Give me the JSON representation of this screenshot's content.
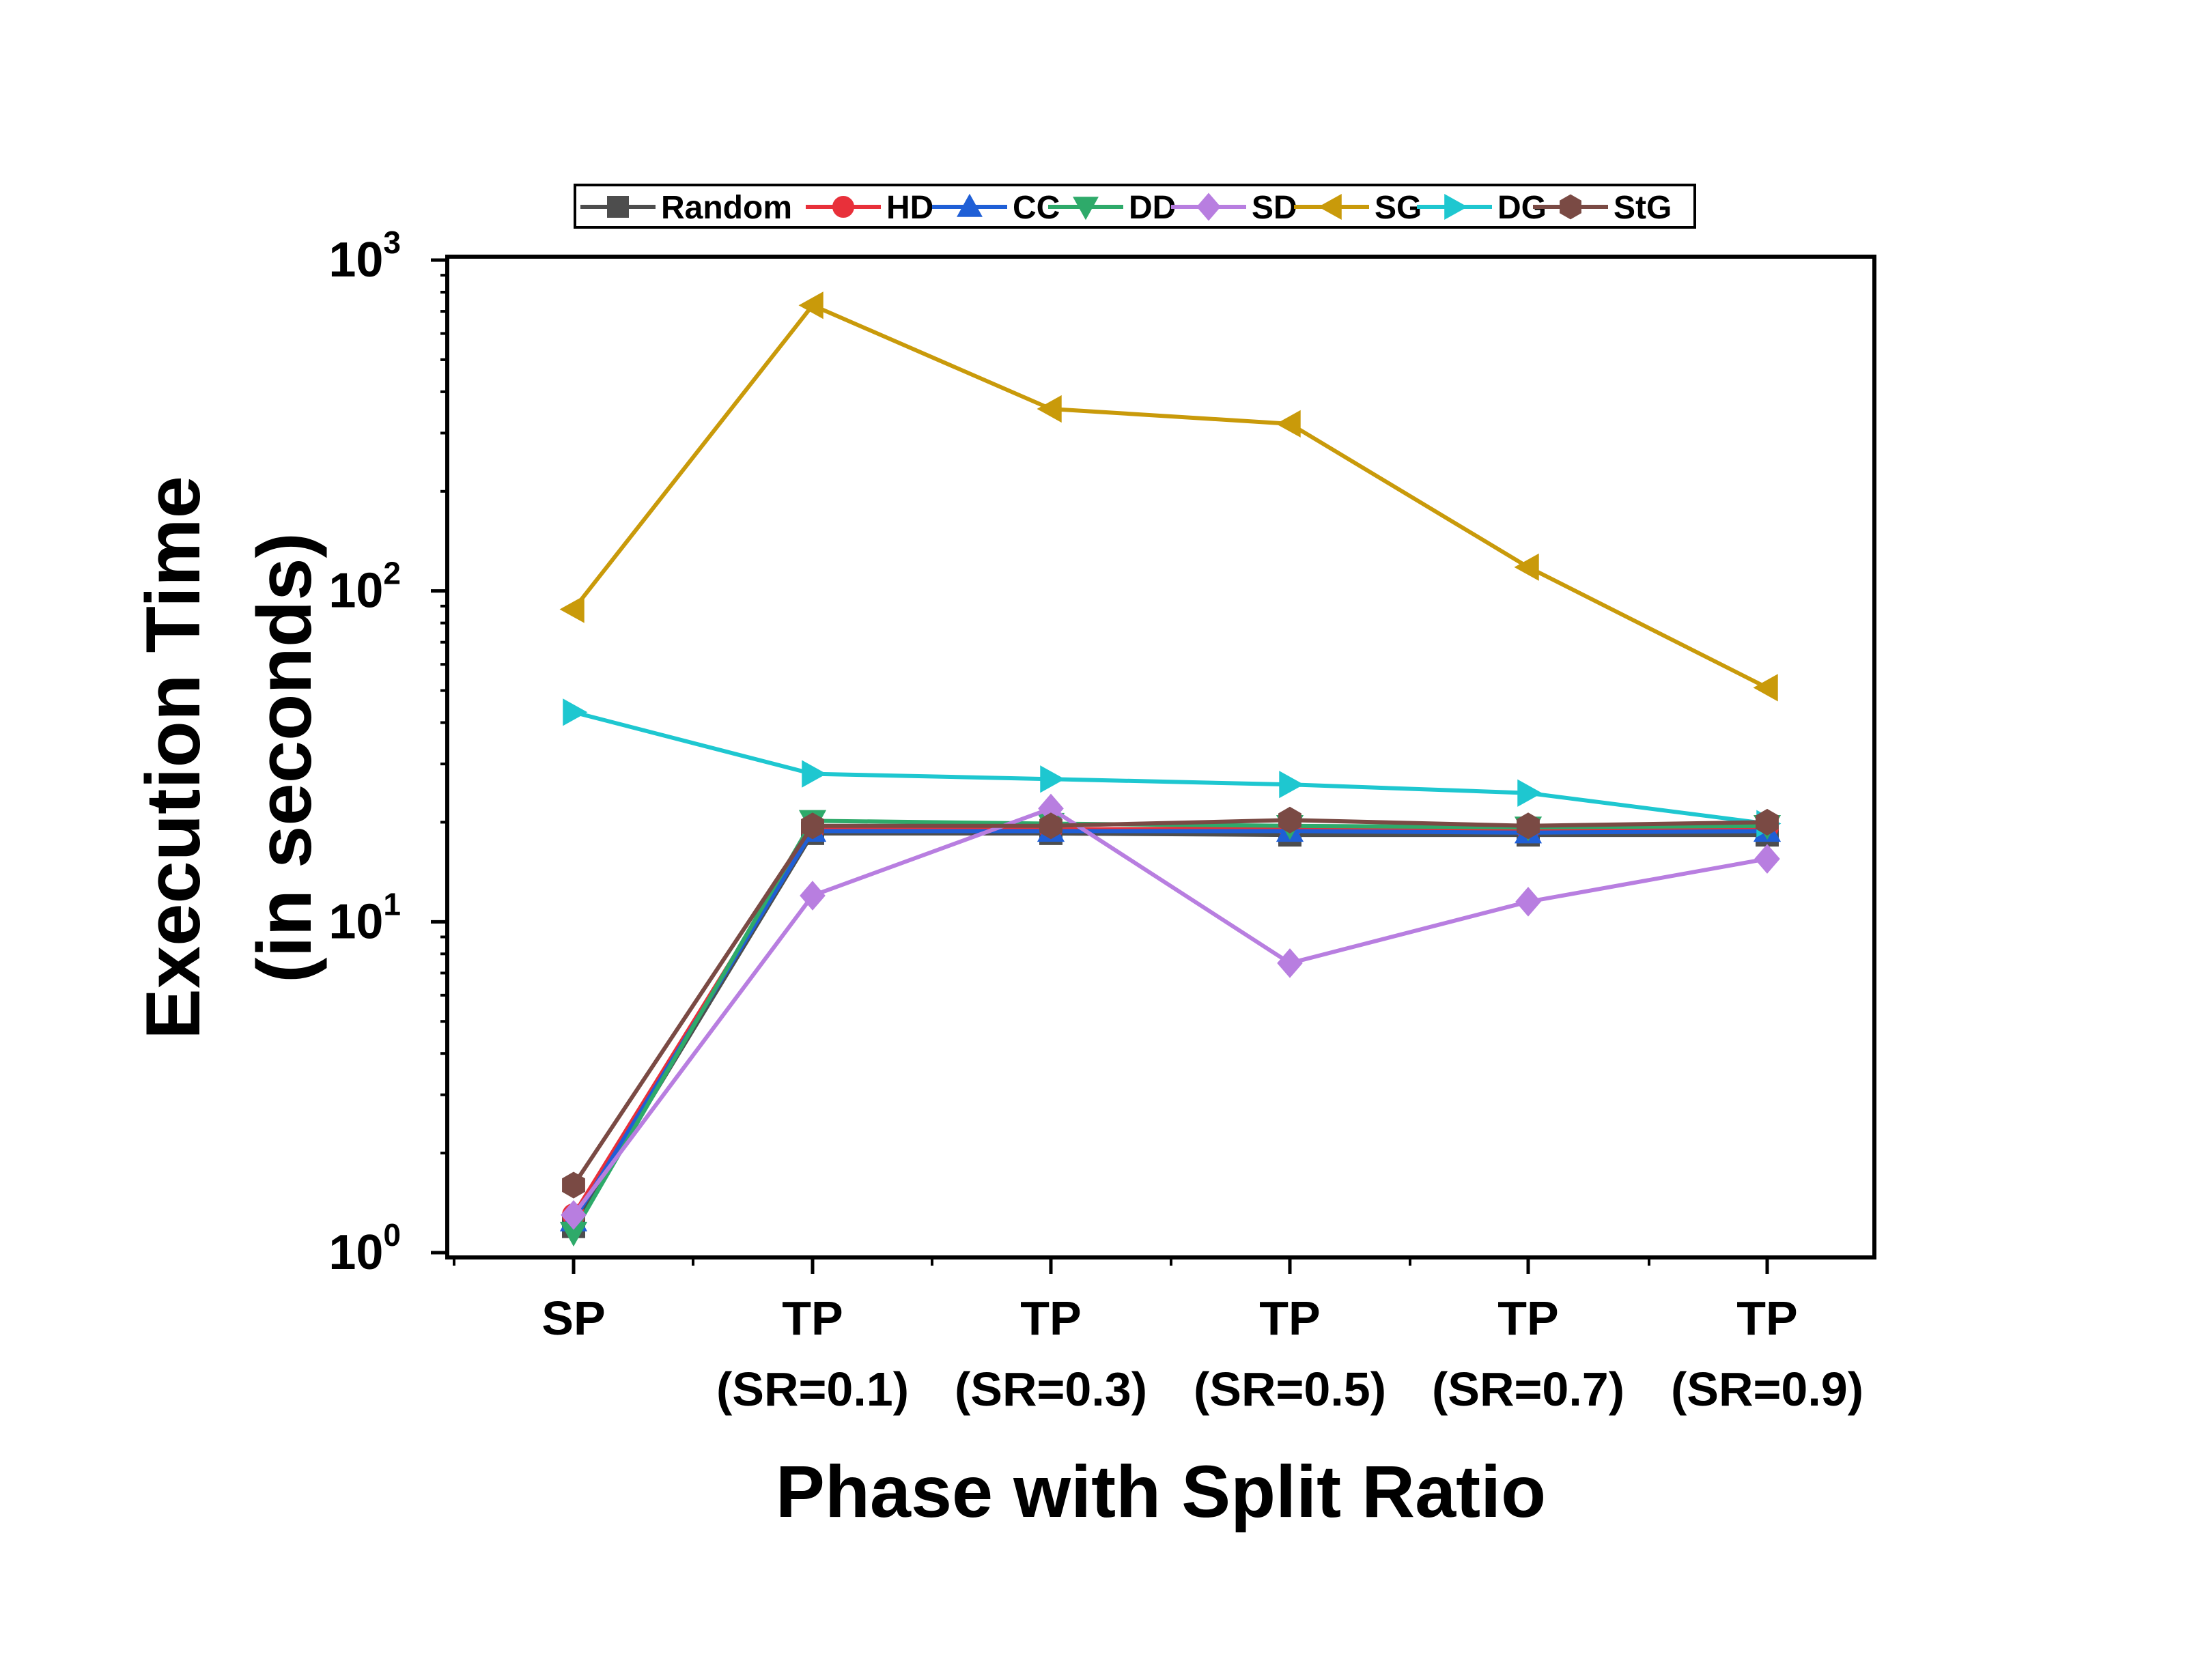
{
  "chart_data": {
    "type": "line",
    "title": "",
    "xlabel": "Phase with Split Ratio",
    "ylabel": [
      "Execution Time",
      "(in seconds)"
    ],
    "yscale": "log",
    "ylim": [
      1,
      1000
    ],
    "y_ticks": [
      {
        "base": "10",
        "exp": "0",
        "value": 1
      },
      {
        "base": "10",
        "exp": "1",
        "value": 10
      },
      {
        "base": "10",
        "exp": "2",
        "value": 100
      },
      {
        "base": "10",
        "exp": "3",
        "value": 1000
      }
    ],
    "categories": [
      [
        "SP"
      ],
      [
        "TP",
        "(SR=0.1)"
      ],
      [
        "TP",
        "(SR=0.3)"
      ],
      [
        "TP",
        "(SR=0.5)"
      ],
      [
        "TP",
        "(SR=0.7)"
      ],
      [
        "TP",
        "(SR=0.9)"
      ]
    ],
    "legend_position": "top",
    "series": [
      {
        "name": "Random",
        "color": "#4d4d4d",
        "marker": "square",
        "values": [
          1.2,
          18.5,
          18.5,
          18.3,
          18.3,
          18.3
        ]
      },
      {
        "name": "HD",
        "color": "#e8303a",
        "marker": "circle",
        "values": [
          1.3,
          19.0,
          19.0,
          19.2,
          19.0,
          19.3
        ]
      },
      {
        "name": "CC",
        "color": "#1f5fd6",
        "marker": "triangle-up",
        "values": [
          1.25,
          18.8,
          18.8,
          18.8,
          18.6,
          18.8
        ]
      },
      {
        "name": "DD",
        "color": "#2eaa6a",
        "marker": "triangle-down",
        "values": [
          1.15,
          20.2,
          19.8,
          19.5,
          19.3,
          19.5
        ]
      },
      {
        "name": "SD",
        "color": "#b87ee0",
        "marker": "diamond",
        "values": [
          1.3,
          12.0,
          22.0,
          7.5,
          11.5,
          15.5
        ]
      },
      {
        "name": "SG",
        "color": "#c99a0a",
        "marker": "triangle-left",
        "values": [
          88,
          730,
          355,
          320,
          118,
          51
        ]
      },
      {
        "name": "DG",
        "color": "#1ec7d0",
        "marker": "triangle-right",
        "values": [
          43,
          28,
          27,
          26,
          24.5,
          19.8
        ]
      },
      {
        "name": "StG",
        "color": "#7a4a44",
        "marker": "hexagon",
        "values": [
          1.6,
          19.5,
          19.5,
          20.3,
          19.5,
          20.0
        ]
      }
    ]
  }
}
